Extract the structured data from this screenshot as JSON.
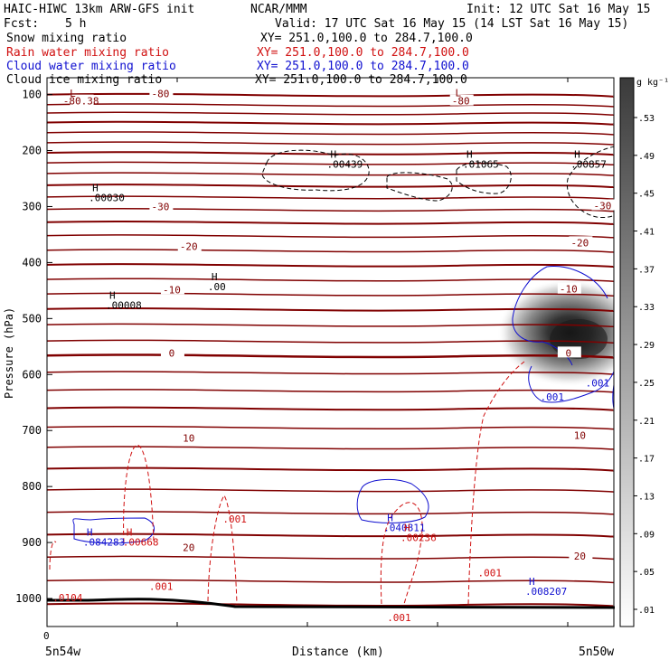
{
  "header": {
    "title": "HAIC-HIWC 13km ARW-GFS init",
    "org": "NCAR/MMM",
    "init": "Init: 12 UTC Sat 16 May 15",
    "fcst_label": "Fcst:",
    "fcst_value": "5 h",
    "valid": "Valid: 17 UTC Sat 16 May 15 (14 LST Sat 16 May 15)"
  },
  "fields": [
    {
      "name": "Snow mixing ratio",
      "xy": "XY= 251.0,100.0 to 284.7,100.0",
      "color": "#000000"
    },
    {
      "name": "Rain water mixing ratio",
      "xy": "XY= 251.0,100.0 to 284.7,100.0",
      "color": "#d01010"
    },
    {
      "name": "Cloud water mixing ratio",
      "xy": "XY= 251.0,100.0 to 284.7,100.0",
      "color": "#1010d0"
    },
    {
      "name": "Cloud ice mixing ratio",
      "xy": "XY= 251.0,100.0 to 284.7,100.0",
      "color": "#000000"
    }
  ],
  "chart_data": {
    "type": "cross-section contour",
    "ylabel": "Pressure (hPa)",
    "xlabel": "Distance (km)",
    "x_start_label": "5n54w",
    "x_end_label": "5n50w",
    "x_zero_label": "0",
    "ylim": [
      1050,
      70
    ],
    "y_ticks": [
      100,
      200,
      300,
      400,
      500,
      600,
      700,
      800,
      900,
      1000
    ],
    "y_tick_labels": [
      "100",
      "200",
      "300",
      "400",
      "500",
      "600",
      "700",
      "800",
      "900",
      "1000"
    ],
    "temperature_contours": {
      "color": "#800000",
      "labels": [
        {
          "text": "-80.38",
          "x": 0.06,
          "p": 113
        },
        {
          "text": "-80",
          "x": 0.2,
          "p": 100
        },
        {
          "text": "-80",
          "x": 0.73,
          "p": 113
        },
        {
          "text": "-30",
          "x": 0.2,
          "p": 302
        },
        {
          "text": "-30",
          "x": 0.98,
          "p": 300
        },
        {
          "text": "-20",
          "x": 0.25,
          "p": 373
        },
        {
          "text": "-20",
          "x": 0.94,
          "p": 366
        },
        {
          "text": "-10",
          "x": 0.22,
          "p": 450
        },
        {
          "text": "-10",
          "x": 0.92,
          "p": 449
        },
        {
          "text": "0",
          "x": 0.22,
          "p": 563
        },
        {
          "text": "0",
          "x": 0.92,
          "p": 563
        },
        {
          "text": "10",
          "x": 0.25,
          "p": 715
        },
        {
          "text": "10",
          "x": 0.94,
          "p": 710
        },
        {
          "text": "20",
          "x": 0.25,
          "p": 910
        },
        {
          "text": "20",
          "x": 0.94,
          "p": 926
        }
      ]
    },
    "extrema_labels": [
      {
        "mark": "L",
        "value": "",
        "x": 0.04,
        "p": 104,
        "color": "#800000"
      },
      {
        "mark": "L",
        "value": "",
        "x": 0.72,
        "p": 103,
        "color": "#800000"
      },
      {
        "mark": "H",
        "value": ".00030",
        "x": 0.08,
        "p": 273,
        "color": "#000000"
      },
      {
        "mark": "H",
        "value": ".00008",
        "x": 0.11,
        "p": 465,
        "color": "#000000"
      },
      {
        "mark": "H",
        "value": ".00",
        "x": 0.29,
        "p": 432,
        "color": "#000000"
      },
      {
        "mark": "H",
        "value": ".00439",
        "x": 0.5,
        "p": 213,
        "color": "#000000"
      },
      {
        "mark": "H",
        "value": ".01065",
        "x": 0.74,
        "p": 213,
        "color": "#000000"
      },
      {
        "mark": "H",
        "value": ".00857",
        "x": 0.93,
        "p": 213,
        "color": "#000000"
      },
      {
        "mark": "H",
        "value": ".084283",
        "x": 0.07,
        "p": 888,
        "color": "#1010d0"
      },
      {
        "mark": "H",
        "value": ".00668",
        "x": 0.14,
        "p": 888,
        "color": "#d01010"
      },
      {
        "mark": "H",
        "value": ".040811",
        "x": 0.6,
        "p": 862,
        "color": "#1010d0"
      },
      {
        "mark": "H",
        "value": ".00236",
        "x": 0.63,
        "p": 880,
        "color": "#d01010"
      },
      {
        "mark": "H",
        "value": ".008207",
        "x": 0.85,
        "p": 976,
        "color": "#1010d0"
      }
    ],
    "contour_labels": [
      {
        "text": ".001",
        "x": 0.95,
        "p": 621,
        "color": "#1010d0"
      },
      {
        "text": ".001",
        "x": 0.87,
        "p": 646,
        "color": "#1010d0"
      },
      {
        "text": ".001",
        "x": 0.31,
        "p": 864,
        "color": "#d01010"
      },
      {
        "text": ".001",
        "x": 0.18,
        "p": 985,
        "color": "#d01010"
      },
      {
        "text": ".0104",
        "x": 0.01,
        "p": 1005,
        "color": "#d01010"
      },
      {
        "text": ".001",
        "x": 0.76,
        "p": 960,
        "color": "#d01010"
      },
      {
        "text": ".001",
        "x": 0.6,
        "p": 1040,
        "color": "#d01010"
      }
    ],
    "colorbar": {
      "unit": "g kg⁻¹",
      "levels": [
        ".53",
        ".49",
        ".45",
        ".41",
        ".37",
        ".33",
        ".29",
        ".25",
        ".21",
        ".17",
        ".13",
        ".09",
        ".05",
        ".01"
      ]
    }
  }
}
